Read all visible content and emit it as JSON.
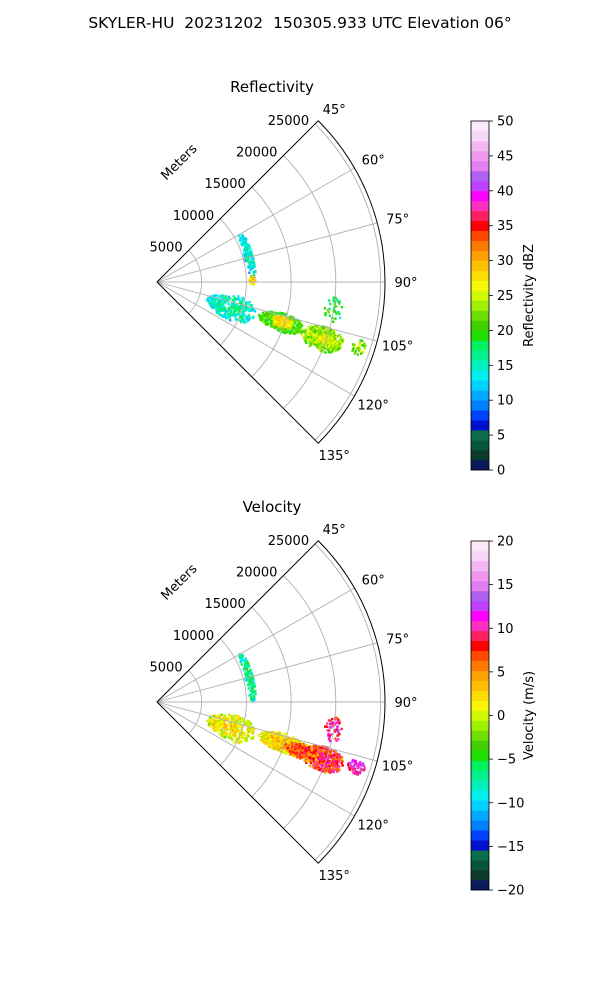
{
  "figure_title": "SKYLER-HU  20231202  150305.933 UTC Elevation 06°",
  "chart_data": [
    {
      "type": "polar-sector",
      "title": "Reflectivity",
      "radial_label": "Meters",
      "radial_ticks": [
        5000,
        10000,
        15000,
        20000,
        25000
      ],
      "radial_tick_labels": [
        "5000",
        "10000",
        "15000",
        "20000",
        "25000"
      ],
      "azimuth_range_deg": [
        45,
        135
      ],
      "azimuth_ticks_deg": [
        45,
        60,
        75,
        90,
        105,
        120,
        135
      ],
      "azimuth_tick_labels": [
        "45°",
        "60°",
        "75°",
        "90°",
        "105°",
        "120°",
        "135°"
      ],
      "grid": true,
      "colorbar": {
        "label": "Reflectivity dBZ",
        "range": [
          0,
          50
        ],
        "ticks": [
          0,
          5,
          10,
          15,
          20,
          25,
          30,
          35,
          40,
          45,
          50
        ],
        "tick_labels": [
          "0",
          "5",
          "10",
          "15",
          "20",
          "25",
          "30",
          "35",
          "40",
          "45",
          "50"
        ],
        "colors": [
          "#0a1a5c",
          "#0c3b2e",
          "#08573a",
          "#0b6e48",
          "#0010d0",
          "#0040ff",
          "#0080ff",
          "#00a8ff",
          "#00d0ff",
          "#00f0f0",
          "#00f0c0",
          "#00f090",
          "#00f060",
          "#20e000",
          "#40d000",
          "#70dd00",
          "#a0ee00",
          "#d0f800",
          "#f8f800",
          "#ffdc00",
          "#ffc000",
          "#ffa000",
          "#ff7800",
          "#ff4800",
          "#ff0000",
          "#ff2060",
          "#ff30c0",
          "#ff00ff",
          "#c040ff",
          "#b060f0",
          "#e080f0",
          "#ee99ee",
          "#f3b8f3",
          "#f8d8f8",
          "#fbe8fb"
        ]
      },
      "echo_regions": [
        {
          "desc": "near arc",
          "az": [
            60,
            88
          ],
          "r": [
            10200,
            11200
          ],
          "value": 13,
          "density": 0.55
        },
        {
          "desc": "near arc hot spot",
          "az": [
            86,
            92
          ],
          "r": [
            10300,
            11000
          ],
          "value": 28,
          "density": 0.9
        },
        {
          "desc": "near line",
          "az": [
            100,
            118
          ],
          "r": [
            6000,
            11500
          ],
          "value": 14,
          "density": 0.35
        },
        {
          "desc": "main cell 1",
          "az": [
            104,
            112
          ],
          "r": [
            12000,
            17000
          ],
          "value": 20,
          "density": 0.92
        },
        {
          "desc": "main cell 2",
          "az": [
            105,
            113
          ],
          "r": [
            17000,
            22000
          ],
          "value": 22,
          "density": 0.92
        },
        {
          "desc": "core 1",
          "az": [
            105,
            110
          ],
          "r": [
            13500,
            16000
          ],
          "value": 26,
          "density": 0.85
        },
        {
          "desc": "core 2",
          "az": [
            107,
            111
          ],
          "r": [
            18500,
            21000
          ],
          "value": 24,
          "density": 0.85
        },
        {
          "desc": "far edge",
          "az": [
            106,
            110
          ],
          "r": [
            23000,
            24500
          ],
          "value": 22,
          "density": 0.6
        },
        {
          "desc": "stray",
          "az": [
            95,
            103
          ],
          "r": [
            19000,
            21000
          ],
          "value": 18,
          "density": 0.3
        }
      ]
    },
    {
      "type": "polar-sector",
      "title": "Velocity",
      "radial_label": "Meters",
      "radial_ticks": [
        5000,
        10000,
        15000,
        20000,
        25000
      ],
      "radial_tick_labels": [
        "5000",
        "10000",
        "15000",
        "20000",
        "25000"
      ],
      "azimuth_range_deg": [
        45,
        135
      ],
      "azimuth_ticks_deg": [
        45,
        60,
        75,
        90,
        105,
        120,
        135
      ],
      "azimuth_tick_labels": [
        "45°",
        "60°",
        "75°",
        "90°",
        "105°",
        "120°",
        "135°"
      ],
      "grid": true,
      "colorbar": {
        "label": "Velocity (m/s)",
        "range": [
          -20,
          20
        ],
        "ticks": [
          -20,
          -15,
          -10,
          -5,
          0,
          5,
          10,
          15,
          20
        ],
        "tick_labels": [
          "−20",
          "−15",
          "−10",
          "−5",
          "0",
          "5",
          "10",
          "15",
          "20"
        ],
        "colors": [
          "#0a1a5c",
          "#0c3b2e",
          "#08573a",
          "#0b6e48",
          "#0010d0",
          "#0040ff",
          "#0080ff",
          "#00a8ff",
          "#00d0ff",
          "#00f0f0",
          "#00f0c0",
          "#00f090",
          "#00f060",
          "#20e000",
          "#40d000",
          "#70dd00",
          "#a0ee00",
          "#d0f800",
          "#f8f800",
          "#ffdc00",
          "#ffc000",
          "#ffa000",
          "#ff7800",
          "#ff4800",
          "#ff0000",
          "#ff2060",
          "#ff30c0",
          "#ff00ff",
          "#c040ff",
          "#b060f0",
          "#e080f0",
          "#ee99ee",
          "#f3b8f3",
          "#f8d8f8",
          "#fbe8fb"
        ]
      },
      "echo_regions": [
        {
          "desc": "near arc",
          "az": [
            60,
            90
          ],
          "r": [
            10200,
            11200
          ],
          "value": -8,
          "density": 0.55
        },
        {
          "desc": "near line",
          "az": [
            100,
            118
          ],
          "r": [
            6000,
            11500
          ],
          "value": 0,
          "density": 0.35
        },
        {
          "desc": "main cell 1",
          "az": [
            104,
            112
          ],
          "r": [
            12000,
            17000
          ],
          "value": 1,
          "density": 0.92
        },
        {
          "desc": "main cell 2",
          "az": [
            105,
            113
          ],
          "r": [
            17000,
            22000
          ],
          "value": 7,
          "density": 0.92
        },
        {
          "desc": "warm band",
          "az": [
            106,
            112
          ],
          "r": [
            15000,
            19000
          ],
          "value": 5,
          "density": 0.85
        },
        {
          "desc": "far edge",
          "az": [
            106,
            110
          ],
          "r": [
            22500,
            24500
          ],
          "value": 10,
          "density": 0.7
        },
        {
          "desc": "stray",
          "az": [
            95,
            103
          ],
          "r": [
            19000,
            21000
          ],
          "value": 9,
          "density": 0.3
        }
      ]
    }
  ]
}
